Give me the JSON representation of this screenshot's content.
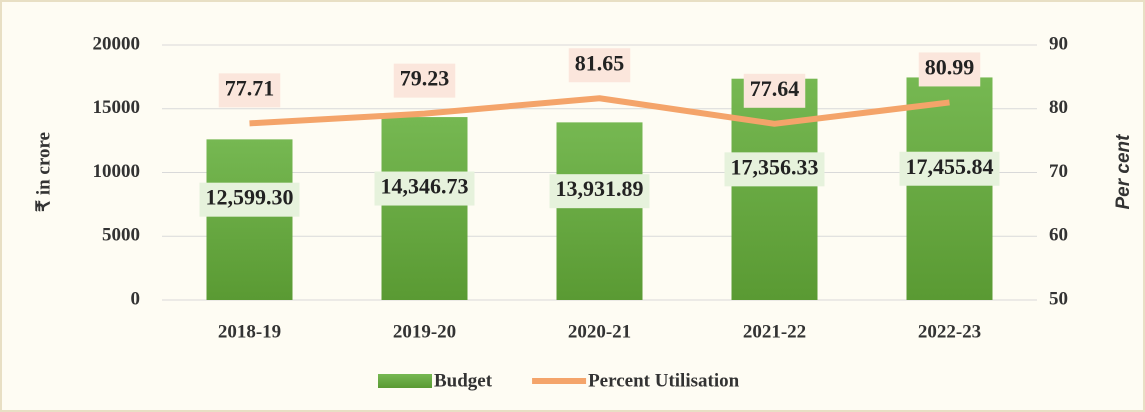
{
  "chart_data": {
    "type": "bar_line",
    "categories": [
      "2018-19",
      "2019-20",
      "2020-21",
      "2021-22",
      "2022-23"
    ],
    "series": [
      {
        "name": "Budget",
        "type": "bar",
        "color": "#70ad47",
        "axis": "y",
        "values": [
          12599.3,
          14346.73,
          13931.89,
          17356.33,
          17455.84
        ],
        "value_labels": [
          "12,599.30",
          "14,346.73",
          "13,931.89",
          "17,356.33",
          "17,455.84"
        ]
      },
      {
        "name": "Percent Utilisation",
        "type": "line",
        "color": "#f4a46a",
        "axis": "y2",
        "values": [
          77.71,
          79.23,
          81.65,
          77.64,
          80.99
        ]
      }
    ],
    "ylabel": "₹ in crore",
    "y2label": "Per cent",
    "ylim": [
      0,
      20000
    ],
    "yticks": [
      0,
      5000,
      10000,
      15000,
      20000
    ],
    "y2lim": [
      50,
      90
    ],
    "y2ticks": [
      50,
      60,
      70,
      80,
      90
    ],
    "grid": true,
    "legend": "bottom"
  }
}
